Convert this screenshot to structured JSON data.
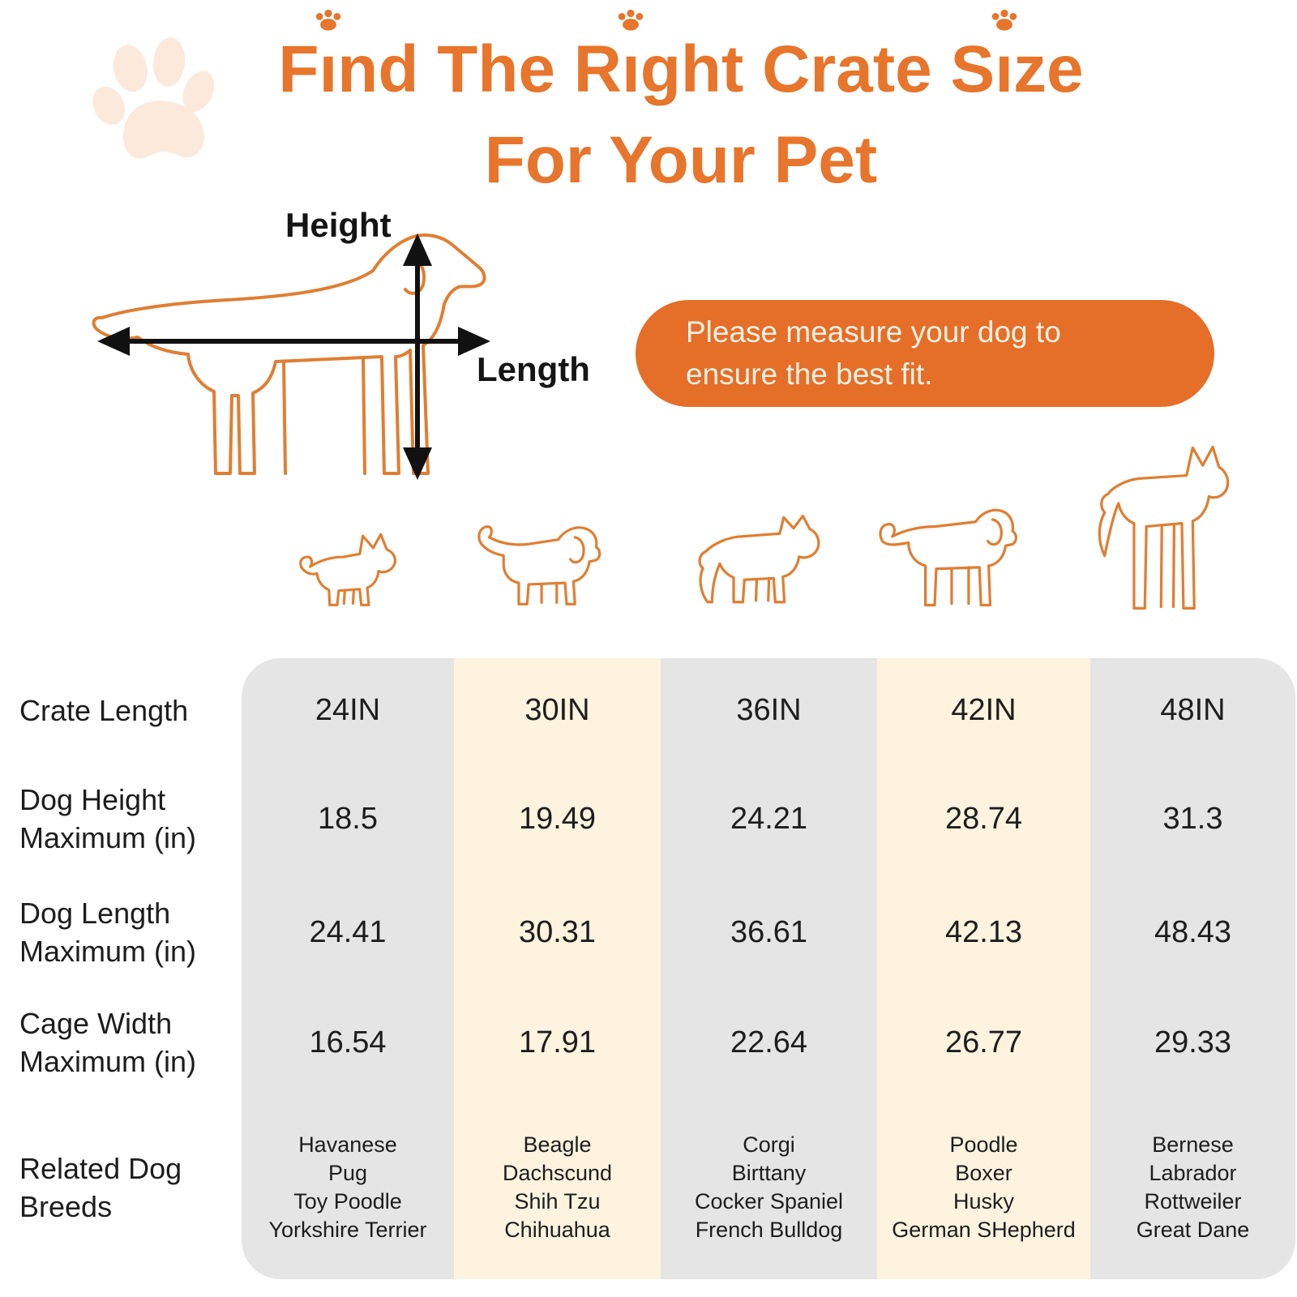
{
  "title": {
    "line1": "Find The Right Crate Size",
    "line2": "For Your Pet"
  },
  "measure_diagram": {
    "height_label": "Height",
    "length_label": "Length"
  },
  "callout": {
    "line1": "Please measure your dog to",
    "line2": "ensure the best fit."
  },
  "dog_icons": [
    "chihuahua",
    "beagle",
    "husky",
    "labrador",
    "great-dane"
  ],
  "size_table": {
    "row_labels": [
      [
        "Crate Length"
      ],
      [
        "Dog Height",
        "Maximum (in)"
      ],
      [
        "Dog Length",
        "Maximum (in)"
      ],
      [
        "Cage Width",
        "Maximum (in)"
      ],
      [
        "Related Dog",
        "Breeds"
      ]
    ],
    "columns": [
      {
        "crate_length": "24IN",
        "dog_height_max": "18.5",
        "dog_length_max": "24.41",
        "cage_width_max": "16.54",
        "breeds": [
          "Havanese",
          "Pug",
          "Toy Poodle",
          "Yorkshire Terrier"
        ]
      },
      {
        "crate_length": "30IN",
        "dog_height_max": "19.49",
        "dog_length_max": "30.31",
        "cage_width_max": "17.91",
        "breeds": [
          "Beagle",
          "Dachscund",
          "Shih Tzu",
          "Chihuahua"
        ]
      },
      {
        "crate_length": "36IN",
        "dog_height_max": "24.21",
        "dog_length_max": "36.61",
        "cage_width_max": "22.64",
        "breeds": [
          "Corgi",
          "Birttany",
          "Cocker Spaniel",
          "French Bulldog"
        ]
      },
      {
        "crate_length": "42IN",
        "dog_height_max": "28.74",
        "dog_length_max": "42.13",
        "cage_width_max": "26.77",
        "breeds": [
          "Poodle",
          "Boxer",
          "Husky",
          "German SHepherd"
        ]
      },
      {
        "crate_length": "48IN",
        "dog_height_max": "31.3",
        "dog_length_max": "48.43",
        "cage_width_max": "29.33",
        "breeds": [
          "Bernese",
          "Labrador",
          "Rottweiler",
          "Great Dane"
        ]
      }
    ]
  },
  "chart_data": {
    "type": "table",
    "title": "Find The Right Crate Size For Your Pet",
    "note": "Please measure your dog to ensure the best fit.",
    "columns": [
      "24IN",
      "30IN",
      "36IN",
      "42IN",
      "48IN"
    ],
    "rows": [
      {
        "label": "Crate Length",
        "values": [
          "24IN",
          "30IN",
          "36IN",
          "42IN",
          "48IN"
        ]
      },
      {
        "label": "Dog Height Maximum (in)",
        "values": [
          18.5,
          19.49,
          24.21,
          28.74,
          31.3
        ]
      },
      {
        "label": "Dog Length Maximum (in)",
        "values": [
          24.41,
          30.31,
          36.61,
          42.13,
          48.43
        ]
      },
      {
        "label": "Cage Width Maximum (in)",
        "values": [
          16.54,
          17.91,
          22.64,
          26.77,
          29.33
        ]
      },
      {
        "label": "Related Dog Breeds",
        "values": [
          [
            "Havanese",
            "Pug",
            "Toy Poodle",
            "Yorkshire Terrier"
          ],
          [
            "Beagle",
            "Dachscund",
            "Shih Tzu",
            "Chihuahua"
          ],
          [
            "Corgi",
            "Birttany",
            "Cocker Spaniel",
            "French Bulldog"
          ],
          [
            "Poodle",
            "Boxer",
            "Husky",
            "German SHepherd"
          ],
          [
            "Bernese",
            "Labrador",
            "Rottweiler",
            "Great Dane"
          ]
        ]
      }
    ]
  },
  "colors": {
    "accent_orange": "#e7752b",
    "outline_orange": "#e07e32",
    "pill_orange": "#e56e29",
    "column_gray": "#e5e5e5",
    "column_peach": "#fdf3df",
    "paw_watermark": "#fbeadc",
    "text_dark": "#1d1d1d"
  }
}
